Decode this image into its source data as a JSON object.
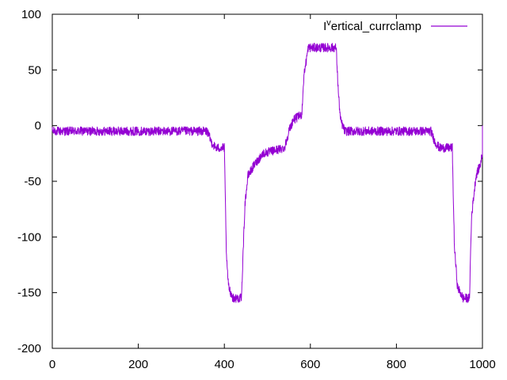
{
  "chart_data": {
    "type": "line",
    "title": "",
    "xlabel": "",
    "ylabel": "",
    "xlim": [
      0,
      1000
    ],
    "ylim": [
      -200,
      100
    ],
    "x_ticks": [
      0,
      200,
      400,
      600,
      800,
      1000
    ],
    "y_ticks": [
      -200,
      -150,
      -100,
      -50,
      0,
      50,
      100
    ],
    "grid": false,
    "legend_position": "top-right",
    "series": [
      {
        "name_parts": [
          "I",
          "v",
          "ertical_currclamp"
        ],
        "color": "#9400d3",
        "noise_amplitude": 4,
        "points": [
          [
            0,
            -5
          ],
          [
            360,
            -5
          ],
          [
            370,
            -15
          ],
          [
            380,
            -20
          ],
          [
            400,
            -20
          ],
          [
            402,
            -60
          ],
          [
            405,
            -120
          ],
          [
            410,
            -145
          ],
          [
            420,
            -155
          ],
          [
            440,
            -155
          ],
          [
            443,
            -120
          ],
          [
            448,
            -70
          ],
          [
            455,
            -45
          ],
          [
            470,
            -35
          ],
          [
            490,
            -25
          ],
          [
            540,
            -20
          ],
          [
            550,
            -5
          ],
          [
            560,
            5
          ],
          [
            580,
            10
          ],
          [
            585,
            45
          ],
          [
            595,
            70
          ],
          [
            660,
            70
          ],
          [
            665,
            30
          ],
          [
            670,
            5
          ],
          [
            680,
            -5
          ],
          [
            880,
            -5
          ],
          [
            890,
            -15
          ],
          [
            900,
            -20
          ],
          [
            930,
            -20
          ],
          [
            932,
            -60
          ],
          [
            935,
            -110
          ],
          [
            942,
            -145
          ],
          [
            955,
            -155
          ],
          [
            970,
            -155
          ],
          [
            972,
            -120
          ],
          [
            975,
            -80
          ],
          [
            985,
            -45
          ],
          [
            995,
            -35
          ],
          [
            1000,
            -25
          ],
          [
            1000,
            0
          ]
        ]
      }
    ]
  }
}
